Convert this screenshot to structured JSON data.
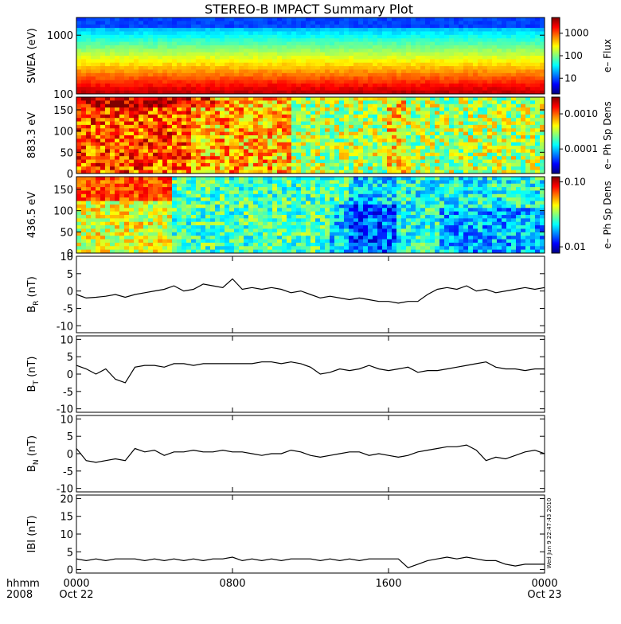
{
  "chart_data": {
    "type": "line",
    "title": "STEREO-B IMPACT Summary Plot",
    "x_axis": {
      "ticks": [
        {
          "top": "0000",
          "bottom": "Oct 22",
          "hours": 0
        },
        {
          "top": "0800",
          "bottom": "",
          "hours": 8
        },
        {
          "top": "1600",
          "bottom": "",
          "hours": 16
        },
        {
          "top": "0000",
          "bottom": "Oct 23",
          "hours": 24
        }
      ],
      "row_labels": [
        "hhmm",
        "2008"
      ],
      "range_hours": [
        0,
        24
      ]
    },
    "side_stamp": "Wed Jun  9 22:47:43 2010",
    "spectrograms": [
      {
        "ylabel": "SWEA (eV)",
        "scale": "log",
        "ylim": [
          100,
          2000
        ],
        "yticks": [
          "100",
          "1000"
        ],
        "colorbar_label": "e– Flux",
        "colorbar_ticks": [
          "10",
          "100",
          "1000"
        ],
        "colorbar_range": [
          2,
          5000
        ]
      },
      {
        "ylabel": "883.3 eV",
        "scale": "linear",
        "ylim": [
          0,
          180
        ],
        "yticks": [
          "0",
          "50",
          "100",
          "150"
        ],
        "colorbar_label": "e– Ph Sp Dens",
        "colorbar_ticks": [
          "0.0001",
          "0.0010"
        ],
        "colorbar_range": [
          2e-05,
          0.003
        ]
      },
      {
        "ylabel": "436.5 eV",
        "scale": "linear",
        "ylim": [
          0,
          180
        ],
        "yticks": [
          "0",
          "50",
          "100",
          "150"
        ],
        "colorbar_label": "e– Ph Sp Dens",
        "colorbar_ticks": [
          "0.01",
          "0.10"
        ],
        "colorbar_range": [
          0.008,
          0.12
        ]
      }
    ],
    "series": [
      {
        "ylabel": "B_R (nT)",
        "ylabel_main": "B",
        "ylabel_sub": "R",
        "ylabel_unit": "(nT)",
        "ylim": [
          -12,
          10
        ],
        "yticks": [
          "-10",
          "-5",
          "0",
          "5",
          "10"
        ],
        "x": [
          0,
          0.5,
          1,
          1.5,
          2,
          2.5,
          3,
          3.5,
          4,
          4.5,
          5,
          5.5,
          6,
          6.5,
          7,
          7.5,
          8,
          8.5,
          9,
          9.5,
          10,
          10.5,
          11,
          11.5,
          12,
          12.5,
          13,
          13.5,
          14,
          14.5,
          15,
          15.5,
          16,
          16.5,
          17,
          17.5,
          18,
          18.5,
          19,
          19.5,
          20,
          20.5,
          21,
          21.5,
          22,
          22.5,
          23,
          23.5,
          24
        ],
        "values": [
          -1,
          -2,
          -1.8,
          -1.5,
          -1,
          -1.8,
          -1,
          -0.5,
          0,
          0.5,
          1.5,
          0,
          0.5,
          2,
          1.5,
          1,
          3.5,
          0.5,
          1,
          0.5,
          1,
          0.5,
          -0.5,
          0,
          -1,
          -2,
          -1.5,
          -2,
          -2.5,
          -2,
          -2.5,
          -3,
          -3,
          -3.5,
          -3,
          -3,
          -1,
          0.5,
          1,
          0.5,
          1.5,
          0,
          0.5,
          -0.5,
          0,
          0.5,
          1,
          0.5,
          1
        ]
      },
      {
        "ylabel": "B_T (nT)",
        "ylabel_main": "B",
        "ylabel_sub": "T",
        "ylabel_unit": "(nT)",
        "ylim": [
          -11,
          11
        ],
        "yticks": [
          "-10",
          "-5",
          "0",
          "5",
          "10"
        ],
        "x": [
          0,
          0.5,
          1,
          1.5,
          2,
          2.5,
          3,
          3.5,
          4,
          4.5,
          5,
          5.5,
          6,
          6.5,
          7,
          7.5,
          8,
          8.5,
          9,
          9.5,
          10,
          10.5,
          11,
          11.5,
          12,
          12.5,
          13,
          13.5,
          14,
          14.5,
          15,
          15.5,
          16,
          16.5,
          17,
          17.5,
          18,
          18.5,
          19,
          19.5,
          20,
          20.5,
          21,
          21.5,
          22,
          22.5,
          23,
          23.5,
          24
        ],
        "values": [
          2.5,
          1.5,
          0,
          1.5,
          -1.5,
          -2.5,
          2,
          2.5,
          2.5,
          2,
          3,
          3,
          2.5,
          3,
          3,
          3,
          3,
          3,
          3,
          3.5,
          3.5,
          3,
          3.5,
          3,
          2,
          0,
          0.5,
          1.5,
          1,
          1.5,
          2.5,
          1.5,
          1,
          1.5,
          2,
          0.5,
          1,
          1,
          1.5,
          2,
          2.5,
          3,
          3.5,
          2,
          1.5,
          1.5,
          1,
          1.5,
          1.5
        ]
      },
      {
        "ylabel": "B_N (nT)",
        "ylabel_main": "B",
        "ylabel_sub": "N",
        "ylabel_unit": "(nT)",
        "ylim": [
          -11,
          11
        ],
        "yticks": [
          "-10",
          "-5",
          "0",
          "5",
          "10"
        ],
        "x": [
          0,
          0.5,
          1,
          1.5,
          2,
          2.5,
          3,
          3.5,
          4,
          4.5,
          5,
          5.5,
          6,
          6.5,
          7,
          7.5,
          8,
          8.5,
          9,
          9.5,
          10,
          10.5,
          11,
          11.5,
          12,
          12.5,
          13,
          13.5,
          14,
          14.5,
          15,
          15.5,
          16,
          16.5,
          17,
          17.5,
          18,
          18.5,
          19,
          19.5,
          20,
          20.5,
          21,
          21.5,
          22,
          22.5,
          23,
          23.5,
          24
        ],
        "values": [
          1.5,
          -2,
          -2.5,
          -2,
          -1.5,
          -2,
          1.5,
          0.5,
          1,
          -0.5,
          0.5,
          0.5,
          1,
          0.5,
          0.5,
          1,
          0.5,
          0.5,
          0,
          -0.5,
          0,
          0,
          1,
          0.5,
          -0.5,
          -1,
          -0.5,
          0,
          0.5,
          0.5,
          -0.5,
          0,
          -0.5,
          -1,
          -0.5,
          0.5,
          1,
          1.5,
          2,
          2,
          2.5,
          1,
          -2,
          -1,
          -1.5,
          -0.5,
          0.5,
          1,
          0
        ]
      },
      {
        "ylabel": "|B| (nT)",
        "ylabel_main": "IBI",
        "ylabel_sub": "",
        "ylabel_unit": "(nT)",
        "ylim": [
          -1,
          21
        ],
        "yticks": [
          "0",
          "5",
          "10",
          "15",
          "20"
        ],
        "x": [
          0,
          0.5,
          1,
          1.5,
          2,
          2.5,
          3,
          3.5,
          4,
          4.5,
          5,
          5.5,
          6,
          6.5,
          7,
          7.5,
          8,
          8.5,
          9,
          9.5,
          10,
          10.5,
          11,
          11.5,
          12,
          12.5,
          13,
          13.5,
          14,
          14.5,
          15,
          15.5,
          16,
          16.5,
          17,
          17.5,
          18,
          18.5,
          19,
          19.5,
          20,
          20.5,
          21,
          21.5,
          22,
          22.5,
          23,
          23.5,
          24
        ],
        "values": [
          3,
          2.5,
          3,
          2.5,
          3,
          3,
          3,
          2.5,
          3,
          2.5,
          3,
          2.5,
          3,
          2.5,
          3,
          3,
          3.5,
          2.5,
          3,
          2.5,
          3,
          2.5,
          3,
          3,
          3,
          2.5,
          3,
          2.5,
          3,
          2.5,
          3,
          3,
          3,
          3,
          0.5,
          1.5,
          2.5,
          3,
          3.5,
          3,
          3.5,
          3,
          2.5,
          2.5,
          1.5,
          1,
          1.5,
          1.5,
          1.5
        ]
      }
    ],
    "colors": {
      "line": "#000000",
      "axis": "#000000",
      "background": "#ffffff"
    }
  }
}
